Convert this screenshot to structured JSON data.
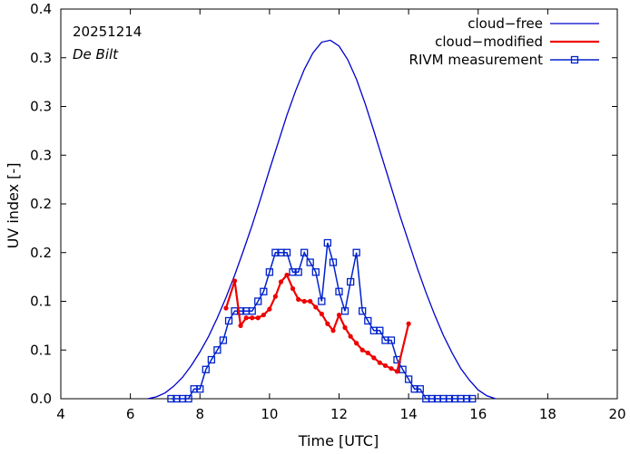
{
  "chart_data": {
    "type": "line",
    "title": "",
    "date_label": "20251214",
    "location_label": "De Bilt",
    "xlabel": "Time  [UTC]",
    "ylabel": "UV index  [-]",
    "xlim": [
      4,
      20
    ],
    "ylim": [
      0,
      0.4
    ],
    "x_ticks": [
      4,
      6,
      8,
      10,
      12,
      14,
      16,
      18,
      20
    ],
    "x_tick_labels": [
      "4",
      "6",
      "8",
      "10",
      "12",
      "14",
      "16",
      "18",
      "20"
    ],
    "y_ticks": [
      0.0,
      0.05,
      0.1,
      0.15,
      0.2,
      0.25,
      0.3,
      0.35,
      0.4
    ],
    "y_tick_labels": [
      "0.0",
      "0.1",
      "0.1",
      "0.2",
      "0.2",
      "0.3",
      "0.3",
      "0.3",
      "0.4"
    ],
    "grid": false,
    "legend_position": "top-right",
    "colors": {
      "cloud_free": "#0000cc",
      "cloud_modified": "#ee0000",
      "measurement": "#0022cc"
    },
    "series": [
      {
        "name": "cloud−free",
        "style": "line",
        "x": [
          6.5,
          6.75,
          7.0,
          7.25,
          7.5,
          7.75,
          8.0,
          8.25,
          8.5,
          8.75,
          9.0,
          9.25,
          9.5,
          9.75,
          10.0,
          10.25,
          10.5,
          10.75,
          11.0,
          11.25,
          11.5,
          11.75,
          12.0,
          12.25,
          12.5,
          12.75,
          13.0,
          13.25,
          13.5,
          13.75,
          14.0,
          14.25,
          14.5,
          14.75,
          15.0,
          15.25,
          15.5,
          15.75,
          16.0,
          16.25,
          16.5
        ],
        "y": [
          0.0,
          0.002,
          0.006,
          0.013,
          0.022,
          0.034,
          0.048,
          0.064,
          0.083,
          0.104,
          0.127,
          0.152,
          0.178,
          0.206,
          0.235,
          0.263,
          0.291,
          0.316,
          0.338,
          0.355,
          0.366,
          0.368,
          0.362,
          0.348,
          0.328,
          0.303,
          0.275,
          0.246,
          0.217,
          0.188,
          0.161,
          0.134,
          0.109,
          0.086,
          0.065,
          0.047,
          0.031,
          0.019,
          0.009,
          0.003,
          0.0
        ]
      },
      {
        "name": "cloud−modified",
        "style": "line+dots",
        "x": [
          8.75,
          9.0,
          9.17,
          9.33,
          9.5,
          9.67,
          9.83,
          10.0,
          10.17,
          10.33,
          10.5,
          10.67,
          10.83,
          11.0,
          11.17,
          11.33,
          11.5,
          11.67,
          11.83,
          12.0,
          12.17,
          12.33,
          12.5,
          12.67,
          12.83,
          13.0,
          13.17,
          13.33,
          13.5,
          13.67,
          14.0
        ],
        "y": [
          0.093,
          0.121,
          0.075,
          0.083,
          0.083,
          0.083,
          0.086,
          0.092,
          0.105,
          0.12,
          0.127,
          0.113,
          0.102,
          0.1,
          0.1,
          0.094,
          0.087,
          0.077,
          0.07,
          0.086,
          0.073,
          0.064,
          0.057,
          0.05,
          0.047,
          0.042,
          0.037,
          0.034,
          0.031,
          0.028,
          0.077
        ]
      },
      {
        "name": "RIVM measurement",
        "style": "line+open-squares",
        "x": [
          7.17,
          7.33,
          7.5,
          7.67,
          7.83,
          8.0,
          8.17,
          8.33,
          8.5,
          8.67,
          8.83,
          9.0,
          9.17,
          9.33,
          9.5,
          9.67,
          9.83,
          10.0,
          10.17,
          10.33,
          10.5,
          10.67,
          10.83,
          11.0,
          11.17,
          11.33,
          11.5,
          11.67,
          11.83,
          12.0,
          12.17,
          12.33,
          12.5,
          12.67,
          12.83,
          13.0,
          13.17,
          13.33,
          13.5,
          13.67,
          13.83,
          14.0,
          14.17,
          14.33,
          14.5,
          14.67,
          14.83,
          15.0,
          15.17,
          15.33,
          15.5,
          15.67,
          15.83
        ],
        "y": [
          0.0,
          0.0,
          0.0,
          0.0,
          0.01,
          0.01,
          0.03,
          0.04,
          0.05,
          0.06,
          0.08,
          0.09,
          0.09,
          0.09,
          0.09,
          0.1,
          0.11,
          0.13,
          0.15,
          0.15,
          0.15,
          0.13,
          0.13,
          0.15,
          0.14,
          0.13,
          0.1,
          0.16,
          0.14,
          0.11,
          0.09,
          0.12,
          0.15,
          0.09,
          0.08,
          0.07,
          0.07,
          0.06,
          0.06,
          0.04,
          0.03,
          0.02,
          0.01,
          0.01,
          0.0,
          0.0,
          0.0,
          0.0,
          0.0,
          0.0,
          0.0,
          0.0,
          0.0
        ]
      }
    ]
  }
}
